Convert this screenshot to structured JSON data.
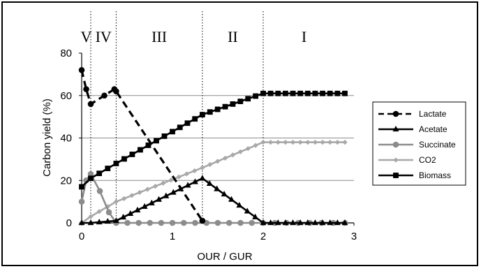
{
  "chart_data": {
    "type": "line",
    "xlabel": "OUR / GUR",
    "ylabel": "Carbon yield (%)",
    "xlim": [
      0,
      3
    ],
    "ylim": [
      0,
      80
    ],
    "xticks": [
      "0",
      "1",
      "2",
      "3"
    ],
    "yticks": [
      "0",
      "20",
      "40",
      "60",
      "80"
    ],
    "regions": [
      {
        "label": "V",
        "from": 0.0,
        "to": 0.1
      },
      {
        "label": "IV",
        "from": 0.1,
        "to": 0.38
      },
      {
        "label": "III",
        "from": 0.38,
        "to": 1.33
      },
      {
        "label": "II",
        "from": 1.33,
        "to": 2.0
      },
      {
        "label": "I",
        "from": 2.0,
        "to": 2.9
      }
    ],
    "region_boundaries": [
      0.1,
      0.38,
      1.33,
      2.0
    ],
    "horizontal_gridlines": [
      20,
      40,
      60
    ],
    "legend_position": "right",
    "series": [
      {
        "name": "Lactate",
        "color": "#000000",
        "style": "dashed",
        "marker": "circle",
        "filled": true,
        "x": [
          0,
          0.05,
          0.1,
          0.25,
          0.36,
          0.38,
          1.33
        ],
        "y": [
          72,
          63,
          56,
          60,
          63,
          62,
          1
        ]
      },
      {
        "name": "Acetate",
        "color": "#000000",
        "style": "solid",
        "marker": "triangle",
        "filled": true,
        "x": [
          0,
          0.1,
          0.38,
          0.85,
          1.33,
          1.65,
          2.0,
          2.9
        ],
        "y": [
          0,
          0,
          1,
          11,
          21,
          11,
          0,
          0
        ]
      },
      {
        "name": "Succinate",
        "color": "#8c8c8c",
        "style": "solid",
        "marker": "circle",
        "filled": true,
        "x": [
          0,
          0.05,
          0.1,
          0.2,
          0.3,
          0.38,
          1.0,
          2.0,
          2.9
        ],
        "y": [
          10,
          20,
          23,
          15,
          5,
          0,
          0,
          0,
          0
        ]
      },
      {
        "name": "CO2",
        "color": "#a8a8a8",
        "style": "solid",
        "marker": "diamond",
        "filled": true,
        "x": [
          0,
          0.1,
          0.38,
          1.33,
          2.0,
          2.9
        ],
        "y": [
          0,
          3,
          10,
          26,
          38,
          38
        ]
      },
      {
        "name": "Biomass",
        "color": "#000000",
        "style": "solid",
        "marker": "square",
        "filled": true,
        "x": [
          0,
          0.1,
          0.38,
          1.0,
          1.33,
          2.0,
          2.9
        ],
        "y": [
          17,
          21,
          28,
          43,
          51,
          61,
          61
        ]
      }
    ]
  }
}
